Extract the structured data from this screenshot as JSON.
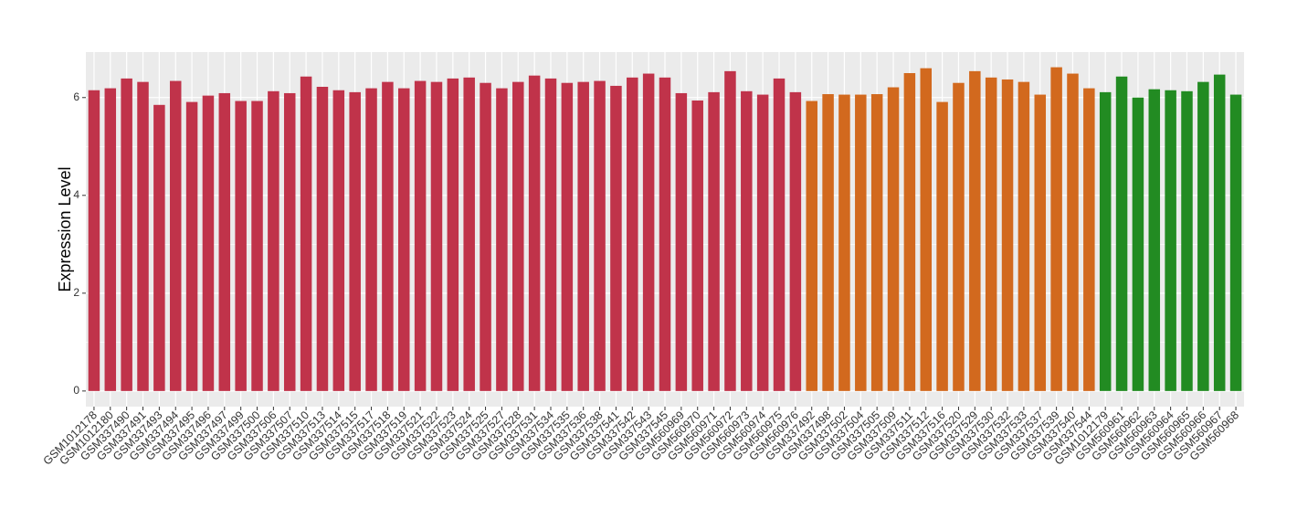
{
  "chart_data": {
    "type": "bar",
    "y_label": "Expression Level",
    "categories": [
      "GSM1012178",
      "GSM1012180",
      "GSM337490",
      "GSM337491",
      "GSM337493",
      "GSM337494",
      "GSM337495",
      "GSM337496",
      "GSM337497",
      "GSM337499",
      "GSM337500",
      "GSM337506",
      "GSM337507",
      "GSM337510",
      "GSM337513",
      "GSM337514",
      "GSM337515",
      "GSM337517",
      "GSM337518",
      "GSM337519",
      "GSM337521",
      "GSM337522",
      "GSM337523",
      "GSM337524",
      "GSM337525",
      "GSM337527",
      "GSM337528",
      "GSM337531",
      "GSM337534",
      "GSM337535",
      "GSM337536",
      "GSM337538",
      "GSM337541",
      "GSM337542",
      "GSM337543",
      "GSM337545",
      "GSM560969",
      "GSM560970",
      "GSM560971",
      "GSM560972",
      "GSM560973",
      "GSM560974",
      "GSM560975",
      "GSM560976",
      "GSM337492",
      "GSM337498",
      "GSM337502",
      "GSM337504",
      "GSM337505",
      "GSM337509",
      "GSM337511",
      "GSM337512",
      "GSM337516",
      "GSM337520",
      "GSM337529",
      "GSM337530",
      "GSM337532",
      "GSM337533",
      "GSM337537",
      "GSM337539",
      "GSM337540",
      "GSM337544",
      "GSM1012179",
      "GSM560961",
      "GSM560962",
      "GSM560963",
      "GSM560964",
      "GSM560965",
      "GSM560966",
      "GSM560967",
      "GSM560968"
    ],
    "values": [
      6.15,
      6.19,
      6.39,
      6.32,
      5.85,
      6.34,
      5.91,
      6.04,
      6.09,
      5.93,
      5.93,
      6.13,
      6.09,
      6.43,
      6.22,
      6.15,
      6.11,
      6.19,
      6.32,
      6.19,
      6.34,
      6.32,
      6.39,
      6.41,
      6.3,
      6.19,
      6.32,
      6.45,
      6.39,
      6.3,
      6.32,
      6.34,
      6.24,
      6.41,
      6.49,
      6.41,
      6.09,
      5.94,
      6.11,
      6.54,
      6.13,
      6.06,
      6.39,
      6.11,
      5.93,
      6.07,
      6.06,
      6.06,
      6.07,
      6.21,
      6.5,
      6.6,
      5.91,
      6.3,
      6.54,
      6.41,
      6.37,
      6.32,
      6.06,
      6.62,
      6.49,
      6.19,
      6.11,
      6.43,
      6.0,
      6.17,
      6.15,
      6.13,
      6.32,
      6.47,
      6.06
    ],
    "colors": [
      "#c0334a",
      "#c0334a",
      "#c0334a",
      "#c0334a",
      "#c0334a",
      "#c0334a",
      "#c0334a",
      "#c0334a",
      "#c0334a",
      "#c0334a",
      "#c0334a",
      "#c0334a",
      "#c0334a",
      "#c0334a",
      "#c0334a",
      "#c0334a",
      "#c0334a",
      "#c0334a",
      "#c0334a",
      "#c0334a",
      "#c0334a",
      "#c0334a",
      "#c0334a",
      "#c0334a",
      "#c0334a",
      "#c0334a",
      "#c0334a",
      "#c0334a",
      "#c0334a",
      "#c0334a",
      "#c0334a",
      "#c0334a",
      "#c0334a",
      "#c0334a",
      "#c0334a",
      "#c0334a",
      "#c0334a",
      "#c0334a",
      "#c0334a",
      "#c0334a",
      "#c0334a",
      "#c0334a",
      "#c0334a",
      "#c0334a",
      "#d2691e",
      "#d2691e",
      "#d2691e",
      "#d2691e",
      "#d2691e",
      "#d2691e",
      "#d2691e",
      "#d2691e",
      "#d2691e",
      "#d2691e",
      "#d2691e",
      "#d2691e",
      "#d2691e",
      "#d2691e",
      "#d2691e",
      "#d2691e",
      "#d2691e",
      "#d2691e",
      "#228b22",
      "#228b22",
      "#228b22",
      "#228b22",
      "#228b22",
      "#228b22",
      "#228b22",
      "#228b22",
      "#228b22"
    ],
    "ylim": [
      -0.32,
      6.93
    ],
    "yticks": [
      0,
      2,
      4,
      6
    ],
    "grid": true
  }
}
